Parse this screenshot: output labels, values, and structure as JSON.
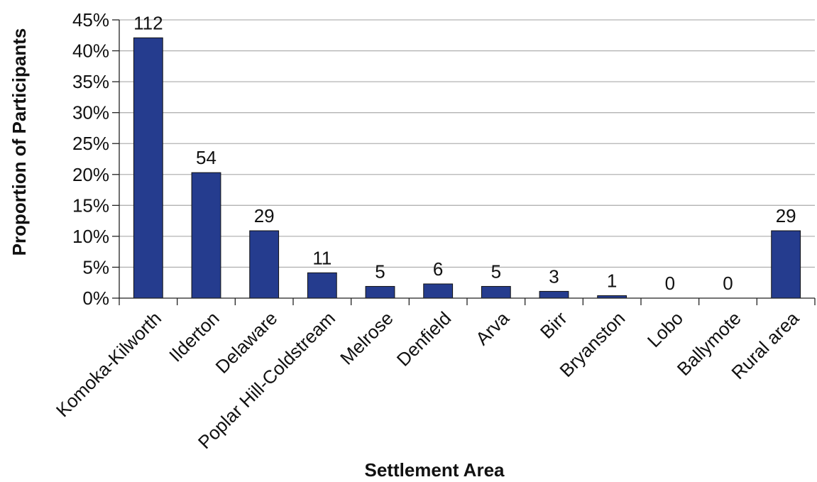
{
  "chart_data": {
    "type": "bar",
    "title": "",
    "xlabel": "Settlement Area",
    "ylabel": "Proportion of Participants",
    "ylim": [
      0,
      45
    ],
    "ytick_step": 5,
    "ytick_suffix": "%",
    "grid": true,
    "bar_color": "#253C8E",
    "categories": [
      "Komoka-Kilworth",
      "Ilderton",
      "Delaware",
      "Poplar Hill-Coldstream",
      "Melrose",
      "Denfield",
      "Arva",
      "Birr",
      "Bryanston",
      "Lobo",
      "Ballymote",
      "Rural area"
    ],
    "values": [
      42.1,
      20.3,
      10.9,
      4.1,
      1.9,
      2.3,
      1.9,
      1.1,
      0.4,
      0,
      0,
      10.9
    ],
    "data_labels": [
      "112",
      "54",
      "29",
      "11",
      "5",
      "6",
      "5",
      "3",
      "1",
      "0",
      "0",
      "29"
    ]
  }
}
